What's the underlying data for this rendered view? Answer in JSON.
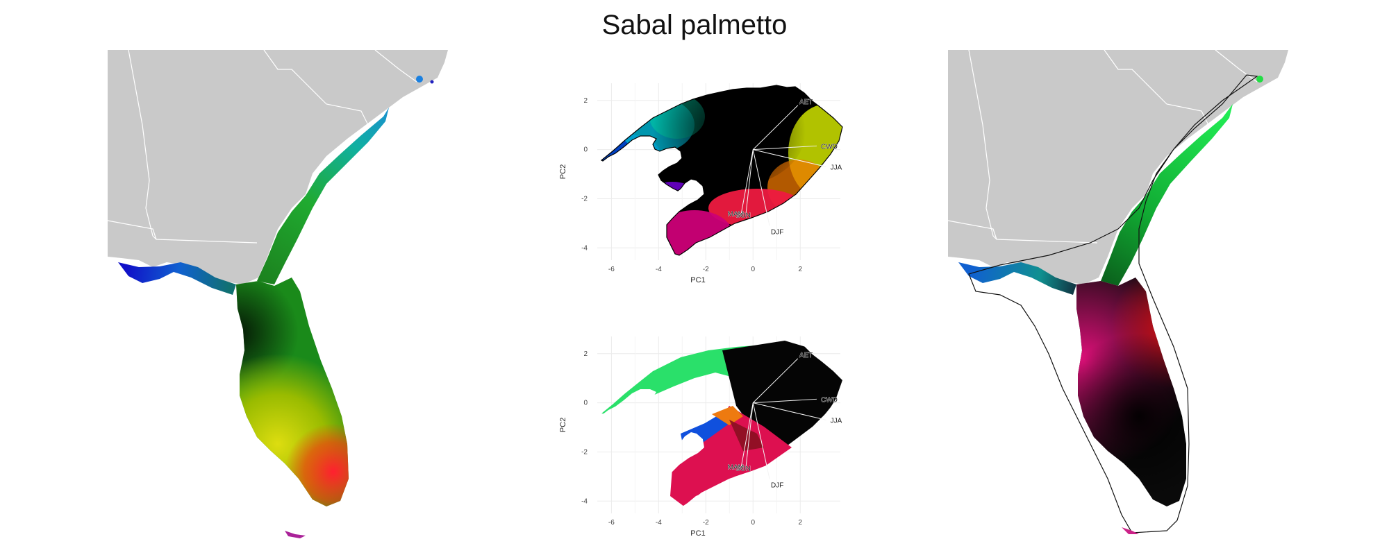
{
  "title": "Sabal palmetto",
  "colors": {
    "land_gray": "#c9c9c9",
    "border_white": "#ffffff",
    "grid": "#ebebeb",
    "green": "#22cc33",
    "dark": "#000000",
    "yellow": "#cccc00",
    "red": "#ff1133",
    "magenta": "#e0007a",
    "blue": "#0055dd",
    "cyan": "#00a0c8",
    "mint": "#33ee77"
  },
  "left_map": {
    "legend": ""
  },
  "right_map": {
    "legend": ""
  },
  "chart_data": [
    {
      "type": "scatter",
      "title": "",
      "xlabel": "PC1",
      "ylabel": "PC2",
      "xlim": [
        -6.6,
        3.7
      ],
      "ylim": [
        -4.5,
        2.7
      ],
      "xticks": [
        -6,
        -4,
        -2,
        0,
        2
      ],
      "yticks": [
        2,
        0,
        -2,
        -4
      ],
      "grid": true,
      "fill": "continuous",
      "loadings": [
        {
          "label": "AET",
          "x": 1.9,
          "y": 1.8
        },
        {
          "label": "CWD",
          "x": 2.7,
          "y": 0.15
        },
        {
          "label": "JJA",
          "x": 3.1,
          "y": -0.7
        },
        {
          "label": "DJF",
          "x": 0.7,
          "y": -3.1
        },
        {
          "label": "MAM",
          "x": -0.5,
          "y": -2.6
        },
        {
          "label": "SON",
          "x": -0.3,
          "y": -2.6
        }
      ]
    },
    {
      "type": "scatter",
      "title": "",
      "xlabel": "PC1",
      "ylabel": "PC2",
      "xlim": [
        -6.6,
        3.7
      ],
      "ylim": [
        -4.5,
        2.7
      ],
      "xticks": [
        -6,
        -4,
        -2,
        0,
        2
      ],
      "yticks": [
        2,
        0,
        -2,
        -4
      ],
      "grid": true,
      "fill": "points",
      "loadings": [
        {
          "label": "AET",
          "x": 1.9,
          "y": 1.8
        },
        {
          "label": "CWD",
          "x": 2.7,
          "y": 0.15
        },
        {
          "label": "JJA",
          "x": 3.1,
          "y": -0.7
        },
        {
          "label": "DJF",
          "x": 0.7,
          "y": -3.1
        },
        {
          "label": "MAM",
          "x": -0.5,
          "y": -2.6
        },
        {
          "label": "SON",
          "x": -0.3,
          "y": -2.6
        }
      ]
    }
  ]
}
